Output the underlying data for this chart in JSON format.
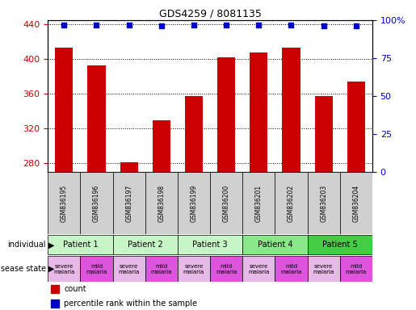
{
  "title": "GDS4259 / 8081135",
  "samples": [
    "GSM836195",
    "GSM836196",
    "GSM836197",
    "GSM836198",
    "GSM836199",
    "GSM836200",
    "GSM836201",
    "GSM836202",
    "GSM836203",
    "GSM836204"
  ],
  "counts": [
    413,
    393,
    281,
    330,
    358,
    402,
    408,
    413,
    358,
    374
  ],
  "percentile_ranks": [
    97,
    97,
    97,
    96,
    97,
    97,
    97,
    97,
    96,
    96
  ],
  "patients": [
    {
      "label": "Patient 1",
      "cols": [
        0,
        1
      ],
      "color": "#c8f5c8"
    },
    {
      "label": "Patient 2",
      "cols": [
        2,
        3
      ],
      "color": "#c8f5c8"
    },
    {
      "label": "Patient 3",
      "cols": [
        4,
        5
      ],
      "color": "#c8f5c8"
    },
    {
      "label": "Patient 4",
      "cols": [
        6,
        7
      ],
      "color": "#88e888"
    },
    {
      "label": "Patient 5",
      "cols": [
        8,
        9
      ],
      "color": "#44cc44"
    }
  ],
  "disease_states": [
    {
      "label": "severe\nmalaria",
      "col": 0,
      "color": "#e8b8e8"
    },
    {
      "label": "mild\nmalaria",
      "col": 1,
      "color": "#dd55dd"
    },
    {
      "label": "severe\nmalaria",
      "col": 2,
      "color": "#e8b8e8"
    },
    {
      "label": "mild\nmalaria",
      "col": 3,
      "color": "#dd55dd"
    },
    {
      "label": "severe\nmalaria",
      "col": 4,
      "color": "#e8b8e8"
    },
    {
      "label": "mild\nmalaria",
      "col": 5,
      "color": "#dd55dd"
    },
    {
      "label": "severe\nmalaria",
      "col": 6,
      "color": "#e8b8e8"
    },
    {
      "label": "mild\nmalaria",
      "col": 7,
      "color": "#dd55dd"
    },
    {
      "label": "severe\nmalaria",
      "col": 8,
      "color": "#e8b8e8"
    },
    {
      "label": "mild\nmalaria",
      "col": 9,
      "color": "#dd55dd"
    }
  ],
  "ylim_left": [
    270,
    445
  ],
  "ylim_right": [
    0,
    100
  ],
  "yticks_left": [
    280,
    320,
    360,
    400,
    440
  ],
  "yticks_right": [
    0,
    25,
    50,
    75,
    100
  ],
  "bar_color": "#cc0000",
  "dot_color": "#0000cc",
  "bar_width": 0.55,
  "sample_bg_color": "#d0d0d0",
  "bg_color": "#ffffff"
}
